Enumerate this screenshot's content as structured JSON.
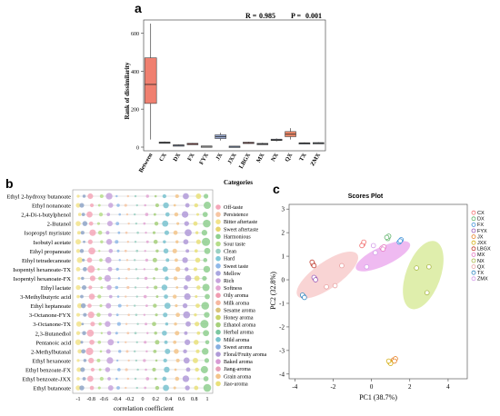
{
  "chart_data": [
    {
      "panel": "a",
      "type": "box",
      "header_stats": {
        "r_label": "R = ",
        "r_value": "0.985",
        "p_label": "P = ",
        "p_value": "0.001"
      },
      "xlabel": "Categories",
      "ylabel": "Rank of dissimilarity",
      "ylim": [
        0,
        650
      ],
      "yticks": [
        0,
        200,
        400,
        600
      ],
      "categories": [
        "Between",
        "CX",
        "DX",
        "FX",
        "FYX",
        "JX",
        "JXX",
        "LBGX",
        "MX",
        "NX",
        "QX",
        "TX",
        "ZMX"
      ],
      "boxes": [
        {
          "cat": "Between",
          "min": 40,
          "q1": 230,
          "median": 330,
          "q3": 470,
          "max": 650,
          "color": "#f08070"
        },
        {
          "cat": "CX",
          "min": 20,
          "q1": 22,
          "median": 24,
          "q3": 27,
          "max": 30,
          "color": "#7f8c9a"
        },
        {
          "cat": "DX",
          "min": 8,
          "q1": 9,
          "median": 10,
          "q3": 12,
          "max": 14,
          "color": "#8ea4c8"
        },
        {
          "cat": "FX",
          "min": 15,
          "q1": 17,
          "median": 18,
          "q3": 20,
          "max": 22,
          "color": "#c05050"
        },
        {
          "cat": "FYX",
          "min": 3,
          "q1": 4,
          "median": 5,
          "q3": 6,
          "max": 7,
          "color": "#b0b0b0"
        },
        {
          "cat": "JX",
          "min": 35,
          "q1": 45,
          "median": 55,
          "q3": 65,
          "max": 75,
          "color": "#9fb0d6"
        },
        {
          "cat": "JXX",
          "min": 2,
          "q1": 3,
          "median": 4,
          "q3": 5,
          "max": 6,
          "color": "#8ea4c8"
        },
        {
          "cat": "LBGX",
          "min": 18,
          "q1": 21,
          "median": 23,
          "q3": 26,
          "max": 28,
          "color": "#e07070"
        },
        {
          "cat": "MX",
          "min": 12,
          "q1": 15,
          "median": 17,
          "q3": 20,
          "max": 23,
          "color": "#7f8c9a"
        },
        {
          "cat": "NX",
          "min": 30,
          "q1": 35,
          "median": 38,
          "q3": 42,
          "max": 46,
          "color": "#9fb0d6"
        },
        {
          "cat": "QX",
          "min": 40,
          "q1": 55,
          "median": 68,
          "q3": 82,
          "max": 100,
          "color": "#f08a6a"
        },
        {
          "cat": "TX",
          "min": 17,
          "q1": 19,
          "median": 21,
          "q3": 23,
          "max": 25,
          "color": "#7f8c9a"
        },
        {
          "cat": "ZMX",
          "min": 18,
          "q1": 20,
          "median": 22,
          "q3": 24,
          "max": 26,
          "color": "#7f8c9a"
        }
      ]
    },
    {
      "panel": "b",
      "type": "bubble",
      "xlabel": "correlation coefficient",
      "xticks": [
        "-1",
        "-0.8",
        "-0.6",
        "-0.4",
        "-0.2",
        "0",
        "0.2",
        "0.4",
        "0.6",
        "0.8",
        "1"
      ],
      "compounds": [
        "Ethyl 2-hydroxy butanoate",
        "Ethyl nonanoate",
        "2,4-Di-t-butylphenol",
        "2-Butanol",
        "Isopropyl myristate",
        "Isobutyl acetate",
        "Ethyl propanoate",
        "Ethyl tetradecanoate",
        "Isopentyl hexanoate-TX",
        "Isopentyl hexanoate-FX",
        "Ethyl lactate",
        "3-Methylbutyric acid",
        "Ethyl heptanoate",
        "3-Octanone-FYX",
        "3-Octanone-TX",
        "2,3-Butanediol",
        "Pentanoic acid",
        "2-Methylbutanal",
        "Ethyl hexanoate",
        "Ethyl benzoate-FX",
        "Ethyl benzoate-JXX",
        "Ethyl butanoate"
      ],
      "attributes": [
        {
          "name": "Off-taste",
          "color": "#f4a7b9"
        },
        {
          "name": "Persistence",
          "color": "#f7c6a3"
        },
        {
          "name": "Bitter aftertaste",
          "color": "#f2e38b"
        },
        {
          "name": "Sweet aftertaste",
          "color": "#e6d46e"
        },
        {
          "name": "Harmonious",
          "color": "#8fcf8f"
        },
        {
          "name": "Sour taste",
          "color": "#b6dd8a"
        },
        {
          "name": "Clean",
          "color": "#9ad0c2"
        },
        {
          "name": "Hard",
          "color": "#7fc8d8"
        },
        {
          "name": "Sweet taste",
          "color": "#8fb8e8"
        },
        {
          "name": "Mellow",
          "color": "#a9a6e0"
        },
        {
          "name": "Rich",
          "color": "#c7a3dc"
        },
        {
          "name": "Softness",
          "color": "#e3a5d3"
        },
        {
          "name": "Oily aroma",
          "color": "#f09bb0"
        },
        {
          "name": "Milk aroma",
          "color": "#f6b7a0"
        },
        {
          "name": "Sesame aroma",
          "color": "#d9c27a"
        },
        {
          "name": "Honey aroma",
          "color": "#c8d46a"
        },
        {
          "name": "Ethanol aroma",
          "color": "#a6d07b"
        },
        {
          "name": "Herbal aroma",
          "color": "#7cc7a0"
        },
        {
          "name": "Mild aroma",
          "color": "#79c2cf"
        },
        {
          "name": "Sweet aroma",
          "color": "#86aee0"
        },
        {
          "name": "Floral/Fruity aroma",
          "color": "#b09ad8"
        },
        {
          "name": "Baked aroma",
          "color": "#d79ad4"
        },
        {
          "name": "Jiang-aroma",
          "color": "#e8a0b8"
        },
        {
          "name": "Grain aroma",
          "color": "#f3c48a"
        },
        {
          "name": "Jiao-aroma",
          "color": "#e9e07a"
        }
      ],
      "row_pattern": [
        [
          -1,
          0.7,
          "#f2e38b"
        ],
        [
          -0.92,
          0.6,
          "#8ea4c8"
        ],
        [
          -0.8,
          0.9,
          "#f4a7b9"
        ],
        [
          -0.66,
          0.5,
          "#b6dd8a"
        ],
        [
          -0.52,
          0.8,
          "#c7a3dc"
        ],
        [
          -0.38,
          0.45,
          "#8fb8e8"
        ],
        [
          -0.24,
          0.35,
          "#f7c6a3"
        ],
        [
          -0.1,
          0.3,
          "#9ad0c2"
        ],
        [
          0.05,
          0.4,
          "#e3a5d3"
        ],
        [
          0.2,
          0.55,
          "#a6d07b"
        ],
        [
          0.36,
          0.75,
          "#79c2cf"
        ],
        [
          0.52,
          0.6,
          "#f3c48a"
        ],
        [
          0.68,
          0.85,
          "#b09ad8"
        ],
        [
          0.84,
          0.65,
          "#e9e07a"
        ],
        [
          0.98,
          1,
          "#8fcf8f"
        ]
      ]
    },
    {
      "panel": "c",
      "type": "scatter",
      "title": "Scores Plot",
      "xlabel": "PC1 (38.7%)",
      "ylabel": "PC2 (32.8%)",
      "xlim": [
        -4.3,
        5.0
      ],
      "ylim": [
        -4.2,
        3.2
      ],
      "xticks": [
        -4,
        -2,
        0,
        2,
        4
      ],
      "yticks": [
        -4,
        -3,
        -2,
        -1,
        0,
        1,
        2,
        3
      ],
      "series": [
        {
          "name": "CX",
          "color": "#f26f6f",
          "points": [
            [
              -0.45,
              1.5
            ],
            [
              -0.4,
              1.6
            ],
            [
              -0.5,
              1.45
            ]
          ]
        },
        {
          "name": "DX",
          "color": "#5fb36a",
          "points": [
            [
              0.85,
              1.75
            ],
            [
              0.9,
              1.85
            ],
            [
              0.8,
              1.8
            ]
          ]
        },
        {
          "name": "FX",
          "color": "#3a8fd8",
          "points": [
            [
              1.45,
              1.6
            ],
            [
              1.55,
              1.7
            ],
            [
              1.5,
              1.65
            ]
          ]
        },
        {
          "name": "FYX",
          "color": "#9b59b6",
          "points": [
            [
              -2.95,
              0.05
            ],
            [
              -3.0,
              0.1
            ],
            [
              -2.92,
              0.0
            ]
          ]
        },
        {
          "name": "JX",
          "color": "#e67e22",
          "points": [
            [
              1.15,
              -3.4
            ],
            [
              1.25,
              -3.35
            ],
            [
              1.2,
              -3.45
            ]
          ]
        },
        {
          "name": "JXX",
          "color": "#d4ac0d",
          "points": [
            [
              0.95,
              -3.5
            ],
            [
              1.0,
              -3.55
            ],
            [
              0.9,
              -3.45
            ]
          ]
        },
        {
          "name": "LBGX",
          "color": "#c0392b",
          "points": [
            [
              -3.05,
              0.65
            ],
            [
              -3.1,
              0.75
            ],
            [
              -3.0,
              0.6
            ]
          ]
        },
        {
          "name": "MX",
          "color": "#e377c2",
          "points": [
            [
              0.55,
              1.35
            ],
            [
              0.65,
              1.4
            ],
            [
              0.6,
              1.3
            ]
          ]
        },
        {
          "name": "NX",
          "color": "#aab84a",
          "points": [
            [
              2.35,
              0.5
            ],
            [
              2.9,
              -0.55
            ],
            [
              3.0,
              0.55
            ]
          ]
        },
        {
          "name": "QX",
          "color": "#e8a0a0",
          "points": [
            [
              -2.35,
              -0.3
            ],
            [
              -1.9,
              -0.25
            ],
            [
              -1.55,
              0.6
            ]
          ]
        },
        {
          "name": "TX",
          "color": "#2e86c1",
          "points": [
            [
              -3.55,
              -0.7
            ],
            [
              -3.6,
              -0.65
            ],
            [
              -3.5,
              -0.75
            ]
          ]
        },
        {
          "name": "ZMX",
          "color": "#d39ce8",
          "points": [
            [
              -0.25,
              0.55
            ],
            [
              0.2,
              1.15
            ],
            [
              0.1,
              1.45
            ]
          ]
        }
      ],
      "ellipses": [
        {
          "cx": -2.3,
          "cy": 0.2,
          "rx": 1.9,
          "ry": 0.35,
          "angle": 35,
          "color": "#f7c5c5"
        },
        {
          "cx": 0.6,
          "cy": 1.0,
          "rx": 1.55,
          "ry": 0.25,
          "angle": 25,
          "color": "#e9a3ec"
        },
        {
          "cx": 2.7,
          "cy": 0.2,
          "rx": 0.9,
          "ry": 0.95,
          "angle": -20,
          "color": "#d4e890"
        }
      ]
    }
  ]
}
